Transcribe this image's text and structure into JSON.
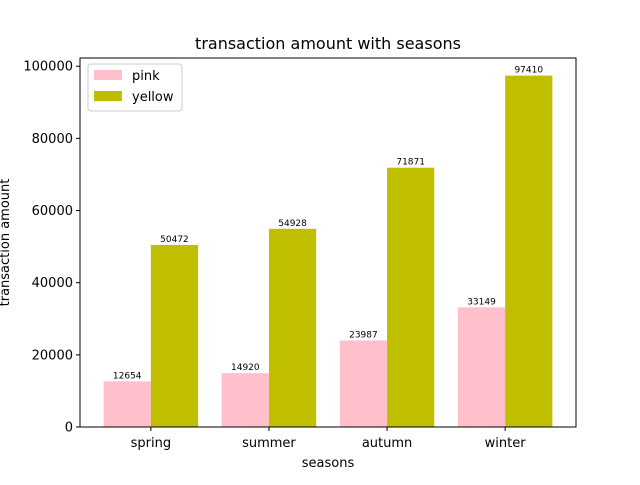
{
  "chart_data": {
    "type": "bar",
    "title": "transaction amount with seasons",
    "xlabel": "seasons",
    "ylabel": "transaction amount",
    "categories": [
      "spring",
      "summer",
      "autumn",
      "winter"
    ],
    "series": [
      {
        "name": "pink",
        "color": "#ffc0cb",
        "values": [
          12654,
          14920,
          23987,
          33149
        ],
        "data_labels": [
          "12654",
          "14920",
          "23987",
          "33149"
        ]
      },
      {
        "name": "yellow",
        "color": "#bfbf00",
        "values": [
          50472,
          54928,
          71871,
          97410
        ],
        "data_labels": [
          "50472",
          "54928",
          "71871",
          "97410"
        ]
      }
    ],
    "ylim": [
      0,
      102281
    ],
    "yticks": [
      0,
      20000,
      40000,
      60000,
      80000,
      100000
    ],
    "ytick_labels": [
      "0",
      "20000",
      "40000",
      "60000",
      "80000",
      "100000"
    ],
    "grid": false,
    "legend_position": "top-left"
  }
}
